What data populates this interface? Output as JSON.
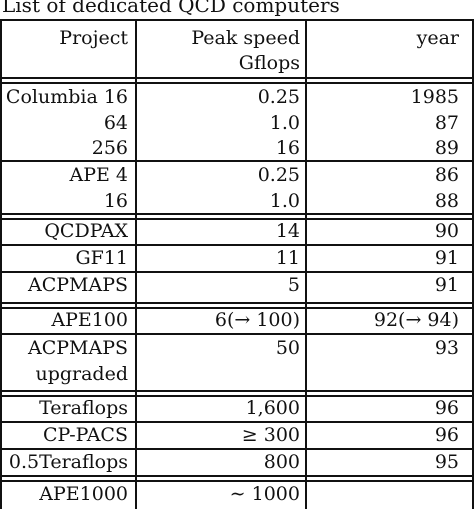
{
  "caption": "List of dedicated QCD computers",
  "headers": {
    "project": "Project",
    "peak_line1": "Peak speed",
    "peak_line2": "Gflops",
    "year": "year"
  },
  "rows": [
    {
      "project": "Columbia 16",
      "peak": "0.25",
      "year": "1985"
    },
    {
      "project": "64",
      "peak": "1.0",
      "year": "87"
    },
    {
      "project": "256",
      "peak": "16",
      "year": "89"
    },
    {
      "project": "APE 4",
      "peak": "0.25",
      "year": "86"
    },
    {
      "project": "16",
      "peak": "1.0",
      "year": "88"
    },
    {
      "project": "QCDPAX",
      "peak": "14",
      "year": "90"
    },
    {
      "project": "GF11",
      "peak": "11",
      "year": "91"
    },
    {
      "project": "ACPMAPS",
      "peak": "5",
      "year": "91"
    },
    {
      "project": "APE100",
      "peak": "6(→ 100)",
      "year": "92(→ 94)"
    },
    {
      "project": "ACPMAPS",
      "peak": "50",
      "year": "93"
    },
    {
      "project": "upgraded",
      "peak": "",
      "year": ""
    },
    {
      "project": "Teraflops",
      "peak": "1,600",
      "year": "96"
    },
    {
      "project": "CP-PACS",
      "peak": "≥ 300",
      "year": "96"
    },
    {
      "project": "0.5Teraflops",
      "peak": "800",
      "year": "95"
    },
    {
      "project": "APE1000",
      "peak": "∼ 1000",
      "year": ""
    }
  ]
}
